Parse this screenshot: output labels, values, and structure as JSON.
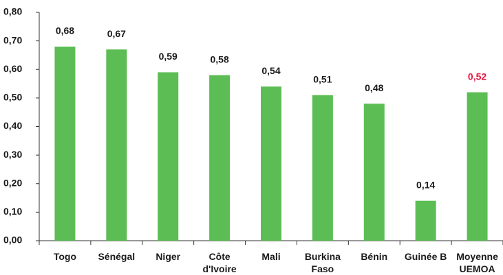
{
  "chart_data": {
    "type": "bar",
    "categories": [
      "Togo",
      "Sénégal",
      "Niger",
      "Côte\nd'Ivoire",
      "Mali",
      "Burkina\nFaso",
      "Bénin",
      "Guinée B",
      "Moyenne\nUEMOA"
    ],
    "values": [
      0.68,
      0.67,
      0.59,
      0.58,
      0.54,
      0.51,
      0.48,
      0.14,
      0.52
    ],
    "value_labels": [
      "0,68",
      "0,67",
      "0,59",
      "0,58",
      "0,54",
      "0,51",
      "0,48",
      "0,14",
      "0,52"
    ],
    "value_label_colors": [
      "#1a1a1a",
      "#1a1a1a",
      "#1a1a1a",
      "#1a1a1a",
      "#1a1a1a",
      "#1a1a1a",
      "#1a1a1a",
      "#1a1a1a",
      "#e3173e"
    ],
    "color": "#5cbd55",
    "ylim": [
      0,
      0.8
    ],
    "yticks": [
      {
        "value": 0,
        "label": "0,00"
      },
      {
        "value": 0.1,
        "label": "0,10"
      },
      {
        "value": 0.2,
        "label": "0,20"
      },
      {
        "value": 0.3,
        "label": "0,30"
      },
      {
        "value": 0.4,
        "label": "0,40"
      },
      {
        "value": 0.5,
        "label": "0,50"
      },
      {
        "value": 0.6,
        "label": "0,60"
      },
      {
        "value": 0.7,
        "label": "0,70"
      },
      {
        "value": 0.8,
        "label": "0,80"
      }
    ],
    "grid": false
  }
}
